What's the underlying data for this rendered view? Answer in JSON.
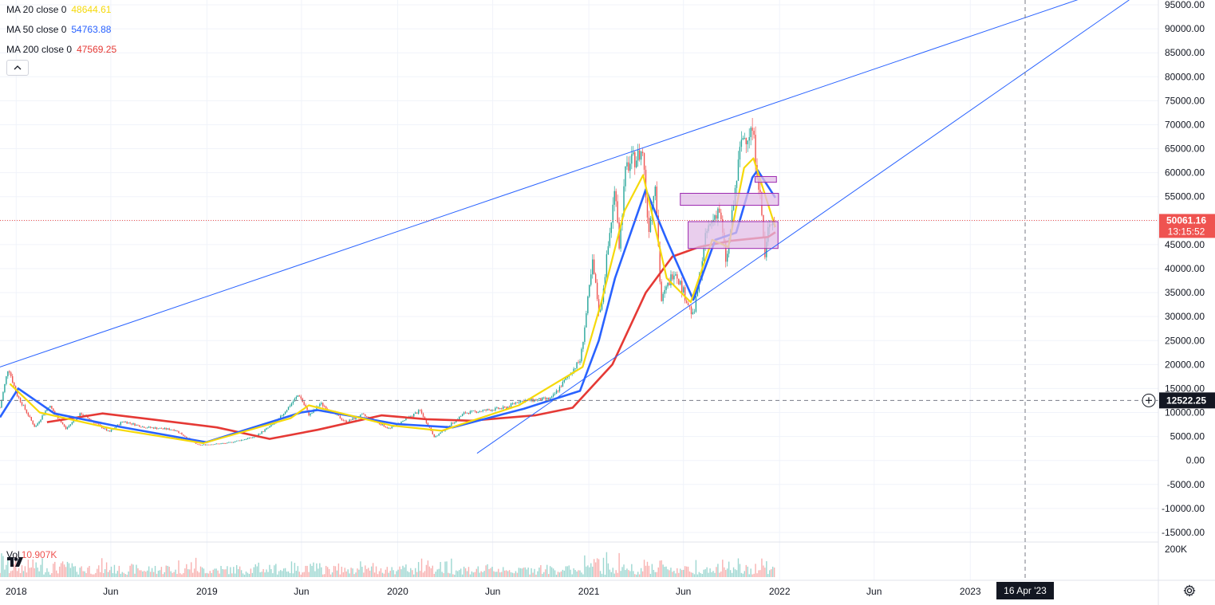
{
  "legend": {
    "ma20": {
      "label": "MA 20 close 0",
      "value": "48644.61",
      "color": "#f5d90a"
    },
    "ma50": {
      "label": "MA 50 close 0",
      "value": "54763.88",
      "color": "#2962ff"
    },
    "ma200": {
      "label": "MA 200 close 0",
      "value": "47569.25",
      "color": "#e53935"
    }
  },
  "volume": {
    "label": "Vol",
    "value": "10.907K",
    "axis_label": "200K"
  },
  "price_badge": {
    "price": "50061.16",
    "countdown": "13:15:52",
    "color": "#ef5350"
  },
  "crosshair": {
    "price_label": "12522.25",
    "date_label": "16 Apr '23"
  },
  "icons": {
    "collapse": "chevron-up-icon",
    "logo": "tradingview-logo-icon",
    "settings": "gear-icon",
    "add": "plus-circle-icon"
  },
  "colors": {
    "up": "#26a69a",
    "down": "#ef5350",
    "trendline": "#2962ff",
    "zone_fill": "#e1bee7",
    "zone_border": "#9c27b0"
  },
  "chart_data": {
    "type": "candlestick",
    "symbol_interval": "1D",
    "y_axis": {
      "range": [
        -17000,
        96000
      ],
      "ticks": [
        "95000.00",
        "90000.00",
        "85000.00",
        "80000.00",
        "75000.00",
        "70000.00",
        "65000.00",
        "60000.00",
        "55000.00",
        "50000.00",
        "45000.00",
        "40000.00",
        "35000.00",
        "30000.00",
        "25000.00",
        "20000.00",
        "15000.00",
        "10000.00",
        "5000.00",
        "0.00",
        "-5000.00",
        "-10000.00",
        "-15000.00"
      ]
    },
    "x_axis": {
      "labels": [
        "2018",
        "Jun",
        "2019",
        "Jun",
        "2020",
        "Jun",
        "2021",
        "Jun",
        "2022",
        "Jun",
        "2023"
      ]
    },
    "price_path": [
      [
        "2017-12-01",
        11000
      ],
      [
        "2017-12-17",
        19500
      ],
      [
        "2018-01-01",
        14000
      ],
      [
        "2018-02-06",
        6900
      ],
      [
        "2018-03-05",
        11500
      ],
      [
        "2018-04-06",
        6600
      ],
      [
        "2018-05-05",
        9800
      ],
      [
        "2018-06-28",
        5900
      ],
      [
        "2018-07-24",
        8200
      ],
      [
        "2018-09-01",
        7000
      ],
      [
        "2018-11-01",
        6400
      ],
      [
        "2018-12-15",
        3200
      ],
      [
        "2019-02-08",
        3600
      ],
      [
        "2019-04-02",
        4900
      ],
      [
        "2019-05-14",
        8000
      ],
      [
        "2019-06-26",
        13800
      ],
      [
        "2019-07-16",
        9400
      ],
      [
        "2019-08-06",
        11900
      ],
      [
        "2019-09-24",
        8000
      ],
      [
        "2019-10-26",
        9500
      ],
      [
        "2019-12-17",
        6600
      ],
      [
        "2020-02-13",
        10400
      ],
      [
        "2020-03-12",
        4800
      ],
      [
        "2020-05-08",
        9900
      ],
      [
        "2020-07-27",
        11000
      ],
      [
        "2020-08-17",
        12300
      ],
      [
        "2020-10-21",
        12900
      ],
      [
        "2020-12-16",
        21000
      ],
      [
        "2021-01-08",
        41000
      ],
      [
        "2021-01-22",
        30000
      ],
      [
        "2021-02-21",
        57500
      ],
      [
        "2021-02-28",
        45000
      ],
      [
        "2021-03-13",
        61000
      ],
      [
        "2021-04-14",
        64500
      ],
      [
        "2021-04-25",
        48000
      ],
      [
        "2021-05-08",
        58800
      ],
      [
        "2021-05-19",
        33000
      ],
      [
        "2021-06-14",
        40000
      ],
      [
        "2021-07-20",
        29800
      ],
      [
        "2021-08-14",
        47500
      ],
      [
        "2021-09-07",
        52900
      ],
      [
        "2021-09-21",
        41000
      ],
      [
        "2021-10-20",
        66900
      ],
      [
        "2021-11-10",
        69000
      ],
      [
        "2021-11-26",
        54000
      ],
      [
        "2021-12-04",
        42000
      ],
      [
        "2021-12-12",
        50000
      ],
      [
        "2021-12-24",
        50100
      ]
    ],
    "moving_averages": {
      "ma20_path": [
        [
          "2017-12-20",
          16000
        ],
        [
          "2018-02-15",
          10000
        ],
        [
          "2018-07-01",
          6700
        ],
        [
          "2018-12-25",
          3600
        ],
        [
          "2019-06-10",
          8800
        ],
        [
          "2019-07-15",
          11500
        ],
        [
          "2019-12-20",
          7300
        ],
        [
          "2020-03-25",
          6200
        ],
        [
          "2020-08-20",
          11500
        ],
        [
          "2020-12-20",
          19500
        ],
        [
          "2021-01-25",
          33000
        ],
        [
          "2021-03-10",
          52000
        ],
        [
          "2021-04-15",
          59500
        ],
        [
          "2021-05-30",
          38000
        ],
        [
          "2021-07-15",
          33000
        ],
        [
          "2021-08-25",
          46000
        ],
        [
          "2021-09-25",
          44500
        ],
        [
          "2021-10-25",
          61000
        ],
        [
          "2021-11-12",
          63000
        ],
        [
          "2021-12-24",
          48644.61
        ]
      ],
      "ma50_path": [
        [
          "2017-12-01",
          9000
        ],
        [
          "2018-01-05",
          15000
        ],
        [
          "2018-03-15",
          9800
        ],
        [
          "2018-07-20",
          7000
        ],
        [
          "2018-12-31",
          3800
        ],
        [
          "2019-06-30",
          10000
        ],
        [
          "2019-08-01",
          10500
        ],
        [
          "2019-12-31",
          7600
        ],
        [
          "2020-04-15",
          6900
        ],
        [
          "2020-08-30",
          10800
        ],
        [
          "2020-12-15",
          14500
        ],
        [
          "2021-01-20",
          25000
        ],
        [
          "2021-02-20",
          38000
        ],
        [
          "2021-04-20",
          56500
        ],
        [
          "2021-05-30",
          46000
        ],
        [
          "2021-07-20",
          33500
        ],
        [
          "2021-08-31",
          46000
        ],
        [
          "2021-10-10",
          47500
        ],
        [
          "2021-11-10",
          59000
        ],
        [
          "2021-11-20",
          60500
        ],
        [
          "2021-12-24",
          54763.88
        ]
      ],
      "ma200_path": [
        [
          "2018-03-01",
          8000
        ],
        [
          "2018-06-15",
          9800
        ],
        [
          "2018-09-15",
          8600
        ],
        [
          "2019-01-20",
          6900
        ],
        [
          "2019-05-01",
          4500
        ],
        [
          "2019-08-01",
          6400
        ],
        [
          "2019-12-01",
          9400
        ],
        [
          "2020-02-25",
          8600
        ],
        [
          "2020-05-20",
          8300
        ],
        [
          "2020-09-20",
          9400
        ],
        [
          "2020-12-01",
          11000
        ],
        [
          "2021-02-15",
          20000
        ],
        [
          "2021-04-20",
          35000
        ],
        [
          "2021-06-10",
          42500
        ],
        [
          "2021-07-31",
          44500
        ],
        [
          "2021-09-30",
          45800
        ],
        [
          "2021-12-10",
          46600
        ],
        [
          "2021-12-24",
          47569.25
        ]
      ]
    },
    "last_price": 50061.16,
    "crosshair_price": 12522.25,
    "crosshair_date": "2023-04-16",
    "trendlines": [
      {
        "start": [
          "2017-12-01",
          19500
        ],
        "end": [
          "2023-08-20",
          97000
        ]
      },
      {
        "start": [
          "2020-06-01",
          1500
        ],
        "end": [
          "2023-11-01",
          96000
        ]
      }
    ],
    "zones": [
      {
        "start": "2021-11-15",
        "end": "2021-12-26",
        "top": 59200,
        "bottom": 58000
      },
      {
        "start": "2021-06-25",
        "end": "2021-12-30",
        "top": 55700,
        "bottom": 53200
      },
      {
        "start": "2021-07-10",
        "end": "2021-12-29",
        "top": 49800,
        "bottom": 44200
      }
    ],
    "volume": {
      "recent": "10.907K",
      "axis_max_label": "200K"
    },
    "grid": true
  }
}
